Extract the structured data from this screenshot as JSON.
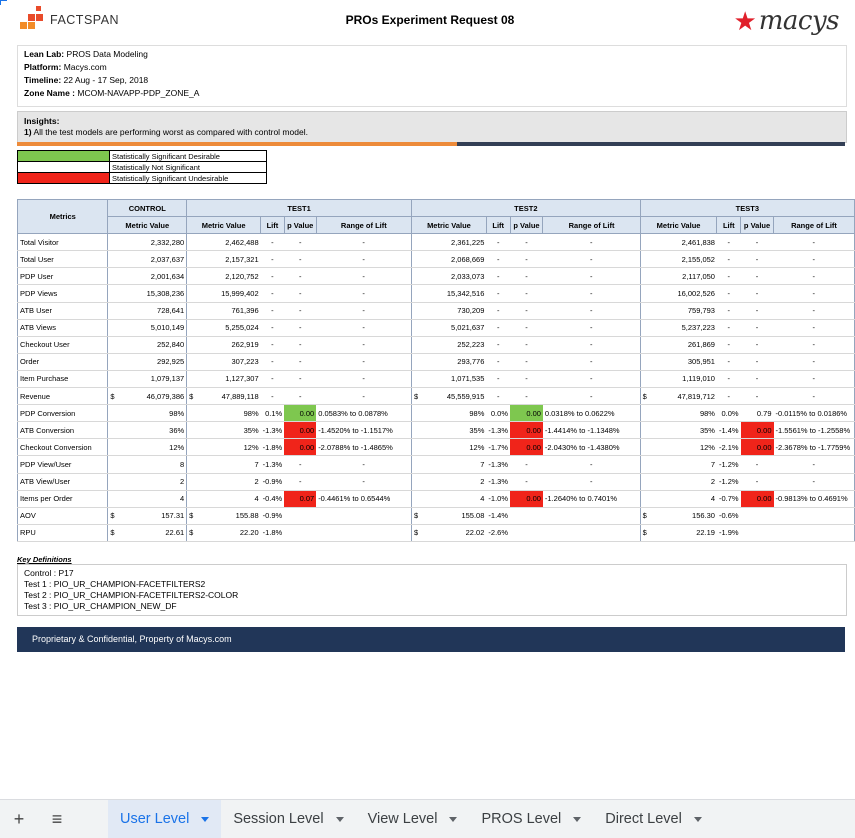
{
  "header": {
    "brand": "FACTSPAN",
    "title": "PROs Experiment Request 08",
    "partner_logo": "macys"
  },
  "info": {
    "lean_lab_label": "Lean Lab:",
    "lean_lab": "PROS Data Modeling",
    "platform_label": "Platform:",
    "platform": "Macys.com",
    "timeline_label": "Timeline:",
    "timeline": "22 Aug -  17 Sep, 2018",
    "zone_label": "Zone Name :",
    "zone": "MCOM-NAVAPP-PDP_ZONE_A"
  },
  "insights": {
    "heading": "Insights:",
    "num": "1)",
    "text": "All the test models are performing worst as compared with control model."
  },
  "legend": [
    {
      "label": "Statistically Significant Desirable",
      "color": "#7ec74f"
    },
    {
      "label": "Statistically Not Significant",
      "color": "#ffffff"
    },
    {
      "label": "Statistically Significant Undesirable",
      "color": "#f0241a"
    }
  ],
  "table": {
    "metrics_header": "Metrics",
    "groups": [
      "CONTROL",
      "TEST1",
      "TEST2",
      "TEST3"
    ],
    "sub_control": "Metric Value",
    "sub_test": [
      "Metric Value",
      "Lift",
      "p Value",
      "Range of Lift"
    ],
    "rows": [
      {
        "name": "Total Visitor",
        "c": [
          "",
          "2,332,280"
        ],
        "t": [
          [
            "",
            "2,462,488",
            "-",
            "-",
            "-",
            ""
          ],
          [
            "",
            "2,361,225",
            "-",
            "-",
            "-",
            ""
          ],
          [
            "",
            "2,461,838",
            "-",
            "-",
            "-",
            ""
          ]
        ]
      },
      {
        "name": "Total User",
        "c": [
          "",
          "2,037,637"
        ],
        "t": [
          [
            "",
            "2,157,321",
            "-",
            "-",
            "-",
            ""
          ],
          [
            "",
            "2,068,669",
            "-",
            "-",
            "-",
            ""
          ],
          [
            "",
            "2,155,052",
            "-",
            "-",
            "-",
            ""
          ]
        ]
      },
      {
        "name": "PDP User",
        "c": [
          "",
          "2,001,634"
        ],
        "t": [
          [
            "",
            "2,120,752",
            "-",
            "-",
            "-",
            ""
          ],
          [
            "",
            "2,033,073",
            "-",
            "-",
            "-",
            ""
          ],
          [
            "",
            "2,117,050",
            "-",
            "-",
            "-",
            ""
          ]
        ]
      },
      {
        "name": "PDP Views",
        "c": [
          "",
          "15,308,236"
        ],
        "t": [
          [
            "",
            "15,999,402",
            "-",
            "-",
            "-",
            ""
          ],
          [
            "",
            "15,342,516",
            "-",
            "-",
            "-",
            ""
          ],
          [
            "",
            "16,002,526",
            "-",
            "-",
            "-",
            ""
          ]
        ]
      },
      {
        "name": "ATB User",
        "c": [
          "",
          "728,641"
        ],
        "t": [
          [
            "",
            "761,396",
            "-",
            "-",
            "-",
            ""
          ],
          [
            "",
            "730,209",
            "-",
            "-",
            "-",
            ""
          ],
          [
            "",
            "759,793",
            "-",
            "-",
            "-",
            ""
          ]
        ]
      },
      {
        "name": "ATB Views",
        "c": [
          "",
          "5,010,149"
        ],
        "t": [
          [
            "",
            "5,255,024",
            "-",
            "-",
            "-",
            ""
          ],
          [
            "",
            "5,021,637",
            "-",
            "-",
            "-",
            ""
          ],
          [
            "",
            "5,237,223",
            "-",
            "-",
            "-",
            ""
          ]
        ]
      },
      {
        "name": "Checkout User",
        "c": [
          "",
          "252,840"
        ],
        "t": [
          [
            "",
            "262,919",
            "-",
            "-",
            "-",
            ""
          ],
          [
            "",
            "252,223",
            "-",
            "-",
            "-",
            ""
          ],
          [
            "",
            "261,869",
            "-",
            "-",
            "-",
            ""
          ]
        ]
      },
      {
        "name": "Order",
        "c": [
          "",
          "292,925"
        ],
        "t": [
          [
            "",
            "307,223",
            "-",
            "-",
            "-",
            ""
          ],
          [
            "",
            "293,776",
            "-",
            "-",
            "-",
            ""
          ],
          [
            "",
            "305,951",
            "-",
            "-",
            "-",
            ""
          ]
        ]
      },
      {
        "name": "Item Purchase",
        "c": [
          "",
          "1,079,137"
        ],
        "t": [
          [
            "",
            "1,127,307",
            "-",
            "-",
            "-",
            ""
          ],
          [
            "",
            "1,071,535",
            "-",
            "-",
            "-",
            ""
          ],
          [
            "",
            "1,119,010",
            "-",
            "-",
            "-",
            ""
          ]
        ]
      },
      {
        "name": "Revenue",
        "c": [
          "$",
          "46,079,386"
        ],
        "t": [
          [
            "$",
            "47,889,118",
            "-",
            "-",
            "-",
            ""
          ],
          [
            "$",
            "45,559,915",
            "-",
            "-",
            "-",
            ""
          ],
          [
            "$",
            "47,819,712",
            "-",
            "-",
            "-",
            ""
          ]
        ]
      },
      {
        "name": "PDP Conversion",
        "c": [
          "",
          "98%"
        ],
        "t": [
          [
            "",
            "98%",
            "0.1%",
            "0.00",
            "0.0583% to 0.0878%",
            "g"
          ],
          [
            "",
            "98%",
            "0.0%",
            "0.00",
            "0.0318% to 0.0622%",
            "g"
          ],
          [
            "",
            "98%",
            "0.0%",
            "0.79",
            "-0.0115% to 0.0186%",
            ""
          ]
        ]
      },
      {
        "name": "ATB Conversion",
        "c": [
          "",
          "36%"
        ],
        "t": [
          [
            "",
            "35%",
            "-1.3%",
            "0.00",
            "-1.4520% to -1.1517%",
            "r"
          ],
          [
            "",
            "35%",
            "-1.3%",
            "0.00",
            "-1.4414% to -1.1348%",
            "r"
          ],
          [
            "",
            "35%",
            "-1.4%",
            "0.00",
            "-1.5561% to -1.2558%",
            "r"
          ]
        ]
      },
      {
        "name": "Checkout Conversion",
        "c": [
          "",
          "12%"
        ],
        "t": [
          [
            "",
            "12%",
            "-1.8%",
            "0.00",
            "-2.0788% to -1.4865%",
            "r"
          ],
          [
            "",
            "12%",
            "-1.7%",
            "0.00",
            "-2.0430% to -1.4380%",
            "r"
          ],
          [
            "",
            "12%",
            "-2.1%",
            "0.00",
            "-2.3678% to -1.7759%",
            "r"
          ]
        ]
      },
      {
        "name": "PDP View/User",
        "c": [
          "",
          "8"
        ],
        "t": [
          [
            "",
            "7",
            "-1.3%",
            "-",
            "-",
            ""
          ],
          [
            "",
            "7",
            "-1.3%",
            "-",
            "-",
            ""
          ],
          [
            "",
            "7",
            "-1.2%",
            "-",
            "-",
            ""
          ]
        ]
      },
      {
        "name": "ATB View/User",
        "c": [
          "",
          "2"
        ],
        "t": [
          [
            "",
            "2",
            "-0.9%",
            "-",
            "-",
            ""
          ],
          [
            "",
            "2",
            "-1.3%",
            "-",
            "-",
            ""
          ],
          [
            "",
            "2",
            "-1.2%",
            "-",
            "-",
            ""
          ]
        ]
      },
      {
        "name": "Items per Order",
        "c": [
          "",
          "4"
        ],
        "t": [
          [
            "",
            "4",
            "-0.4%",
            "0.07",
            "-0.4461% to 0.6544%",
            "r"
          ],
          [
            "",
            "4",
            "-1.0%",
            "0.00",
            "-1.2640% to 0.7401%",
            "r"
          ],
          [
            "",
            "4",
            "-0.7%",
            "0.00",
            "-0.9813% to 0.4691%",
            "r"
          ]
        ]
      },
      {
        "name": "AOV",
        "c": [
          "$",
          "157.31"
        ],
        "t": [
          [
            "$",
            "155.88",
            "-0.9%",
            "",
            "",
            ""
          ],
          [
            "$",
            "155.08",
            "-1.4%",
            "",
            "",
            ""
          ],
          [
            "$",
            "156.30",
            "-0.6%",
            "",
            "",
            ""
          ]
        ]
      },
      {
        "name": "RPU",
        "c": [
          "$",
          "22.61"
        ],
        "t": [
          [
            "$",
            "22.20",
            "-1.8%",
            "",
            "",
            ""
          ],
          [
            "$",
            "22.02",
            "-2.6%",
            "",
            "",
            ""
          ],
          [
            "$",
            "22.19",
            "-1.9%",
            "",
            "",
            ""
          ]
        ]
      }
    ]
  },
  "key_definitions": {
    "heading": "Key Definitions",
    "lines": [
      "Control : P17",
      "Test 1 : PIO_UR_CHAMPION-FACETFILTERS2",
      "Test 2 : PIO_UR_CHAMPION-FACETFILTERS2-COLOR",
      "Test 3 : PIO_UR_CHAMPION_NEW_DF"
    ]
  },
  "footer": {
    "text": "Proprietary & Confidential, Property of Macys.com"
  },
  "tabbar": {
    "add_icon": "+",
    "menu_icon": "≡",
    "tabs": [
      "User Level",
      "Session Level",
      "View Level",
      "PROS Level",
      "Direct Level"
    ],
    "active_index": 0
  }
}
